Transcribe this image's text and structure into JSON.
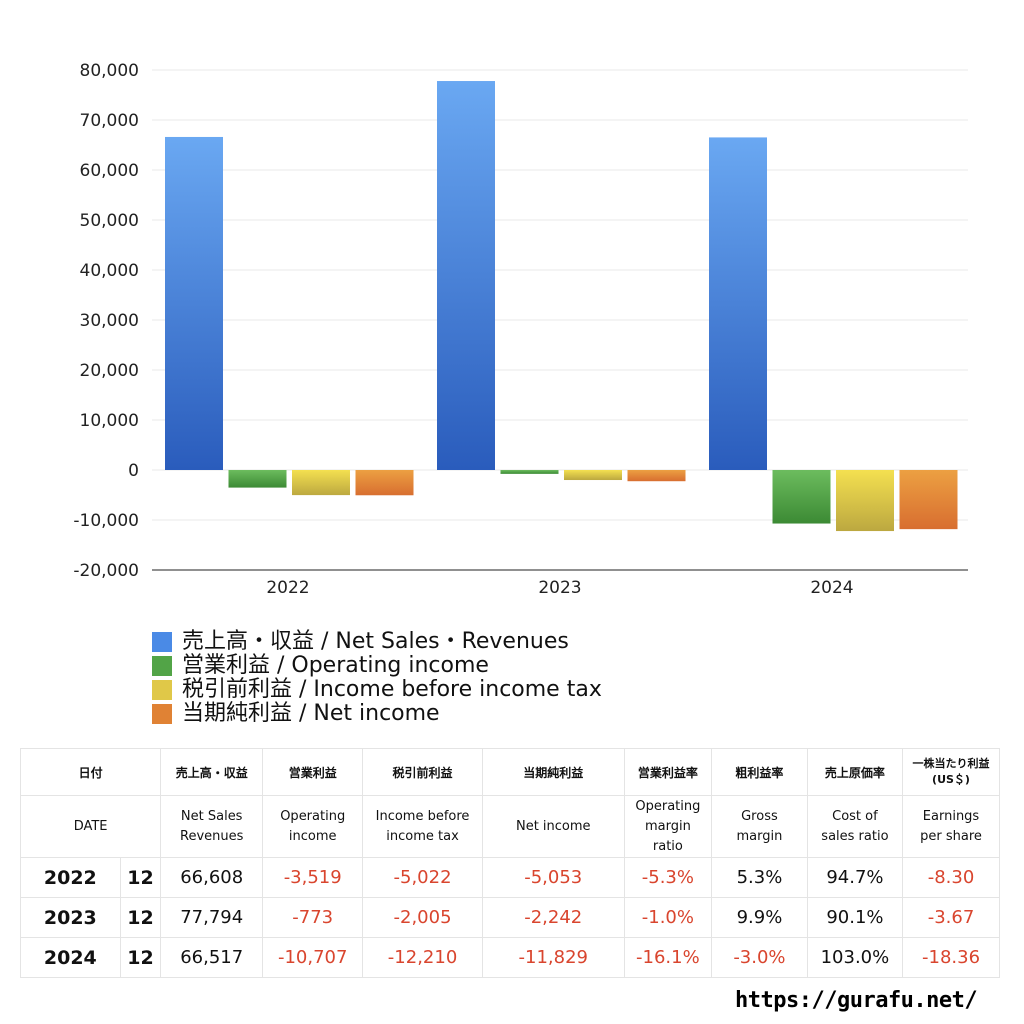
{
  "chart_data": {
    "type": "bar",
    "categories": [
      "2022",
      "2023",
      "2024"
    ],
    "ylim": [
      -20000,
      80000
    ],
    "yticks": [
      80000,
      70000,
      60000,
      50000,
      40000,
      30000,
      20000,
      10000,
      0,
      -10000,
      -20000
    ],
    "ytick_labels": [
      "80,000",
      "70,000",
      "60,000",
      "50,000",
      "40,000",
      "30,000",
      "20,000",
      "10,000",
      "0",
      "-10,000",
      "-20,000"
    ],
    "grid": true,
    "legend_placement": "bottom",
    "series": [
      {
        "name": "売上高・収益 / Net Sales・Revenues",
        "values": [
          66608,
          77794,
          66517
        ],
        "color": "#4a8ae6"
      },
      {
        "name": "営業利益 / Operating income",
        "values": [
          -3519,
          -773,
          -10707
        ],
        "color": "#52a447"
      },
      {
        "name": "税引前利益 / Income before income tax",
        "values": [
          -5022,
          -2005,
          -12210
        ],
        "color": "#e0c848"
      },
      {
        "name": "当期純利益 / Net income",
        "values": [
          -5053,
          -2242,
          -11829
        ],
        "color": "#e08234"
      }
    ]
  },
  "table": {
    "header_jp": [
      "日付",
      "売上高・収益",
      "営業利益",
      "税引前利益",
      "当期純利益",
      "営業利益率",
      "粗利益率",
      "売上原価率",
      "一株当たり利益",
      "(US＄)"
    ],
    "header_en": [
      "DATE",
      "Net Sales",
      "Revenues",
      "Operating",
      "income",
      "Income before",
      "income tax",
      "Net income",
      "Operating",
      "margin",
      "ratio",
      "Gross",
      "margin",
      "Cost of",
      "sales ratio",
      "Earnings",
      "per share"
    ],
    "rows": [
      {
        "year": "2022",
        "month": "12",
        "cells": [
          "66,608",
          "-3,519",
          "-5,022",
          "-5,053",
          "-5.3%",
          "5.3%",
          "94.7%",
          "-8.30"
        ]
      },
      {
        "year": "2023",
        "month": "12",
        "cells": [
          "77,794",
          "-773",
          "-2,005",
          "-2,242",
          "-1.0%",
          "9.9%",
          "90.1%",
          "-3.67"
        ]
      },
      {
        "year": "2024",
        "month": "12",
        "cells": [
          "66,517",
          "-10,707",
          "-12,210",
          "-11,829",
          "-16.1%",
          "-3.0%",
          "103.0%",
          "-18.36"
        ]
      }
    ]
  },
  "watermark": "https://gurafu.net/"
}
